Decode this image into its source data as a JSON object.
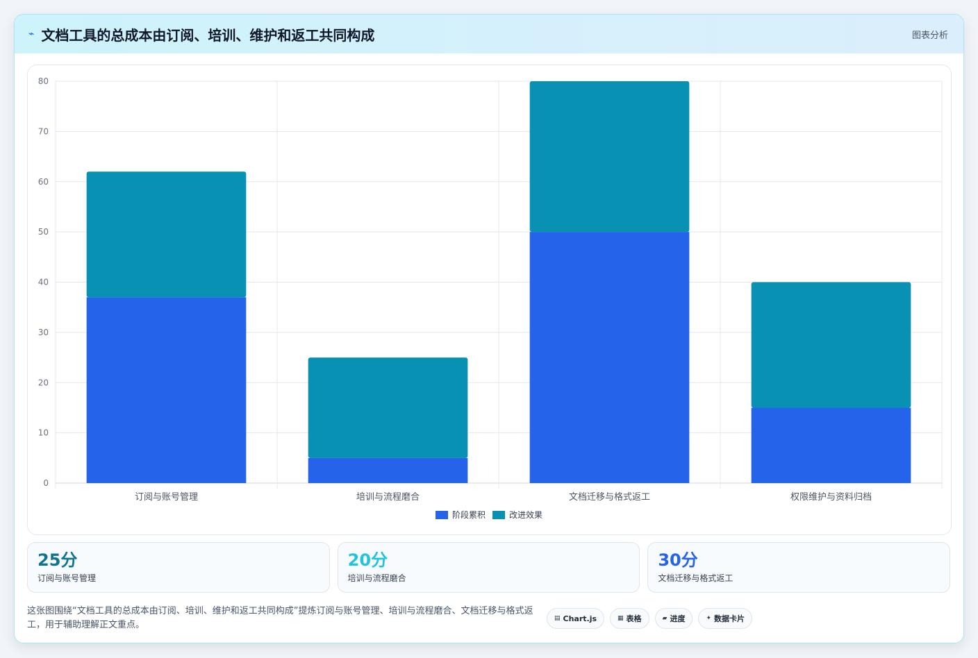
{
  "header": {
    "icon": "sparkline-icon",
    "title": "文档工具的总成本由订阅、培训、维护和返工共同构成",
    "tag": "图表分析"
  },
  "chart_data": {
    "type": "bar",
    "stacked": true,
    "categories": [
      "订阅与账号管理",
      "培训与流程磨合",
      "文档迁移与格式返工",
      "权限维护与资料归档"
    ],
    "series": [
      {
        "name": "阶段累积",
        "values": [
          37,
          5,
          50,
          15
        ],
        "color": "#2563eb"
      },
      {
        "name": "改进效果",
        "values": [
          25,
          20,
          30,
          25
        ],
        "color": "#0891b2"
      }
    ],
    "ylim": [
      0,
      80
    ],
    "yticks": [
      0,
      10,
      20,
      30,
      40,
      50,
      60,
      70,
      80
    ],
    "grid": true,
    "legend": "bottom"
  },
  "stats": [
    {
      "value": "25分",
      "label": "订阅与账号管理",
      "color": "#0e7490"
    },
    {
      "value": "20分",
      "label": "培训与流程磨合",
      "color": "#22c3dd"
    },
    {
      "value": "30分",
      "label": "文档迁移与格式返工",
      "color": "#2563eb"
    }
  ],
  "footer": {
    "text": "这张图围绕“文档工具的总成本由订阅、培训、维护和返工共同构成”提炼订阅与账号管理、培训与流程磨合、文档迁移与格式返工，用于辅助理解正文重点。",
    "chips": [
      {
        "icon": "chart-icon",
        "glyph": "▤",
        "label": "Chart.js"
      },
      {
        "icon": "table-icon",
        "glyph": "▦",
        "label": "表格"
      },
      {
        "icon": "progress-icon",
        "glyph": "▰",
        "label": "进度"
      },
      {
        "icon": "card-icon",
        "glyph": "✦",
        "label": "数据卡片"
      }
    ]
  }
}
